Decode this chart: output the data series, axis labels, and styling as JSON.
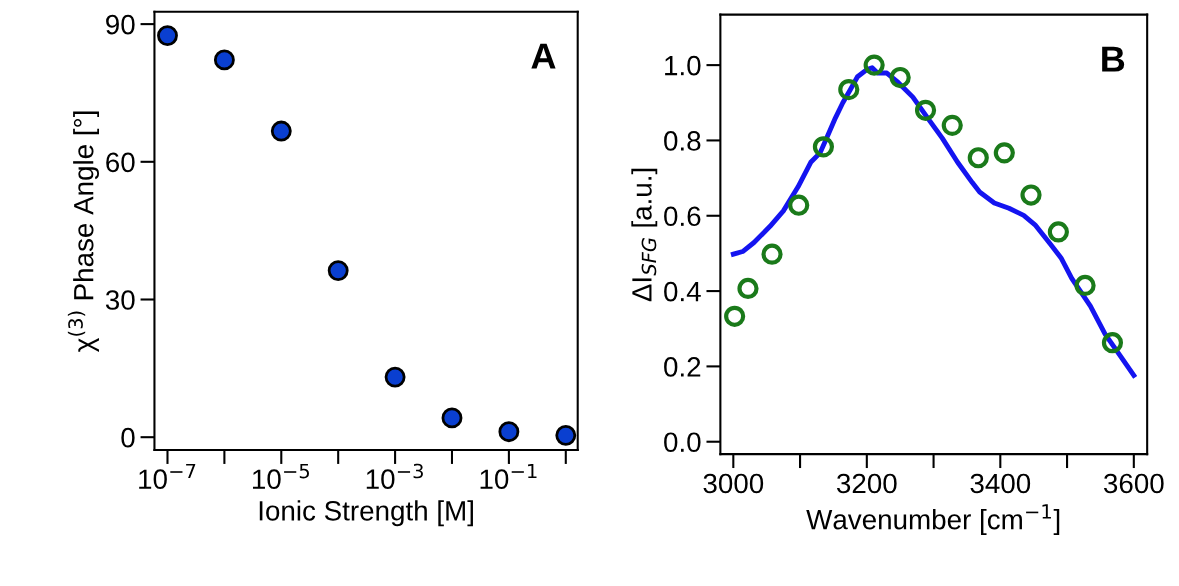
{
  "chart_data": [
    {
      "type": "scatter",
      "xlabel": "Ionic Strength [M]",
      "ylabel": "χ$^{(3)}$ Phase Angle [°]",
      "annotations": [
        "A"
      ],
      "log": "x",
      "marker": "circle",
      "grid": false,
      "x": [
        1e-07,
        1e-06,
        1e-05,
        0.0001,
        0.001,
        0.01,
        0.1,
        1
      ],
      "series": [
        {
          "color": "#0a3fd0",
          "values": [
            87.5,
            82.2,
            66.7,
            36.3,
            13.1,
            4.2,
            1.2,
            0.4
          ]
        }
      ],
      "xlim": [
        5.9e-08,
        1.62
      ],
      "ylim": [
        -2.8,
        92.7
      ],
      "xticks": [
        {
          "value": 1e-07,
          "label": "10$^{−7}$"
        },
        {
          "value": 1e-06,
          "label": null
        },
        {
          "value": 1e-05,
          "label": "10$^{−5}$"
        },
        {
          "value": 0.0001,
          "label": null
        },
        {
          "value": 0.001,
          "label": "10$^{−3}$"
        },
        {
          "value": 0.01,
          "label": null
        },
        {
          "value": 0.1,
          "label": "10$^{−1}$"
        },
        {
          "value": 1,
          "label": null
        }
      ],
      "yticks": [
        0,
        30,
        60,
        90
      ]
    },
    {
      "type": "scatter",
      "xlabel": "Wavenumber [cm$^{−1}$]",
      "ylabel": "ΔI$_{SFG}$ [a.u.]",
      "annotations": [
        "B"
      ],
      "grid": false,
      "series": [
        {
          "type": "line",
          "marker": "none",
          "color": "#1414f0",
          "x": [
            3000,
            3014,
            3031,
            3055,
            3075,
            3097,
            3116,
            3130,
            3141,
            3153,
            3164,
            3175,
            3186,
            3200,
            3208,
            3216,
            3230,
            3247,
            3269,
            3291,
            3313,
            3336,
            3358,
            3369,
            3391,
            3413,
            3435,
            3452,
            3474,
            3491,
            3507,
            3535,
            3557,
            3580,
            3600
          ],
          "values": [
            0.498,
            0.505,
            0.529,
            0.572,
            0.613,
            0.677,
            0.742,
            0.767,
            0.811,
            0.86,
            0.9,
            0.934,
            0.969,
            0.988,
            0.993,
            0.979,
            0.979,
            0.954,
            0.915,
            0.86,
            0.806,
            0.742,
            0.688,
            0.663,
            0.634,
            0.62,
            0.601,
            0.576,
            0.527,
            0.488,
            0.434,
            0.36,
            0.286,
            0.227,
            0.176
          ]
        },
        {
          "type": "scatter",
          "marker": "circle",
          "color": "#1a7a1a",
          "x": [
            3002,
            3022,
            3058,
            3098,
            3135,
            3173,
            3211,
            3250,
            3288,
            3328,
            3367,
            3406,
            3446,
            3487,
            3527,
            3568
          ],
          "values": [
            0.333,
            0.407,
            0.498,
            0.628,
            0.783,
            0.935,
            1.0,
            0.967,
            0.88,
            0.84,
            0.754,
            0.767,
            0.655,
            0.557,
            0.415,
            0.263
          ]
        }
      ],
      "xlim": [
        2980.6,
        3620
      ],
      "ylim": [
        -0.033,
        1.134
      ],
      "xticks": [
        3000,
        {
          "value": 3100,
          "label": null
        },
        3200,
        {
          "value": 3300,
          "label": null
        },
        3400,
        {
          "value": 3500,
          "label": null
        },
        3600
      ],
      "yticks": [
        {
          "value": 0,
          "label": "0.0"
        },
        0.2,
        0.4,
        0.6,
        0.8,
        {
          "value": 1,
          "label": "1.0"
        }
      ]
    }
  ]
}
